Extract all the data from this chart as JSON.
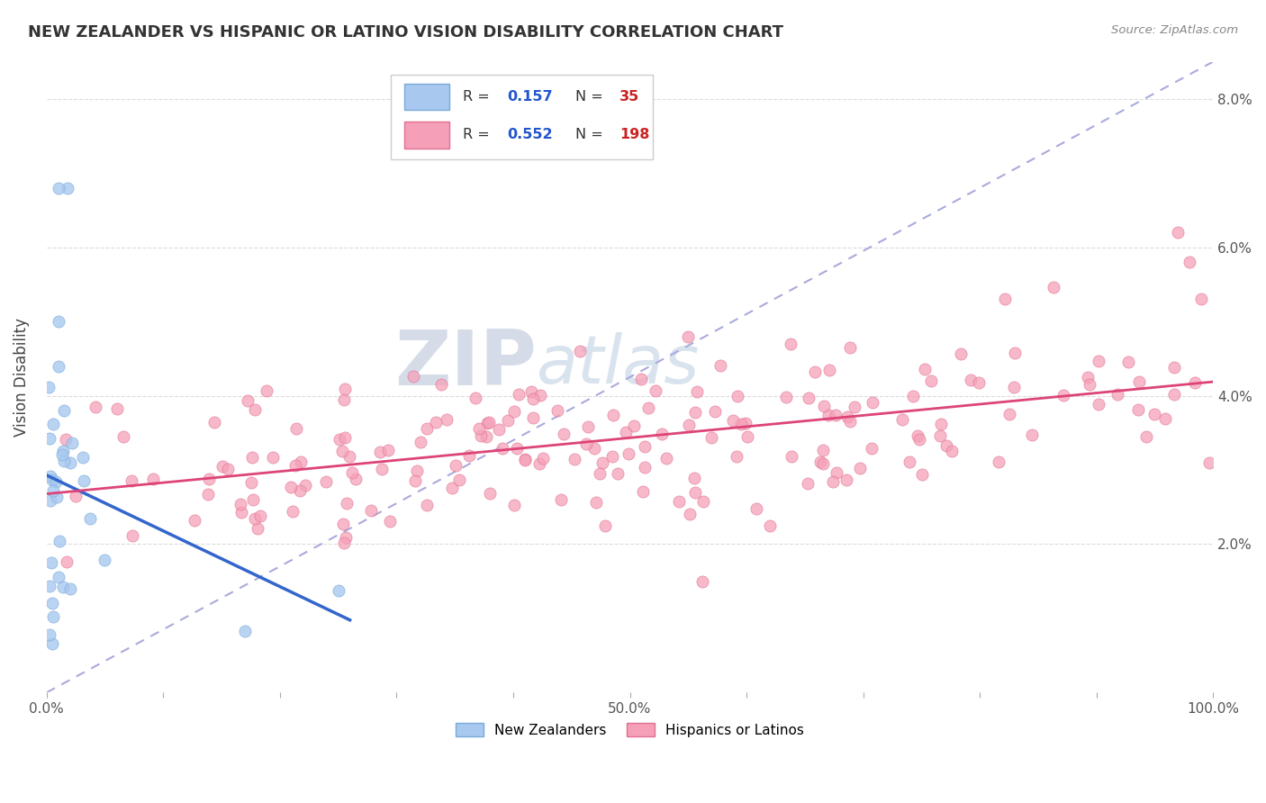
{
  "title": "NEW ZEALANDER VS HISPANIC OR LATINO VISION DISABILITY CORRELATION CHART",
  "source": "Source: ZipAtlas.com",
  "ylabel": "Vision Disability",
  "xlim": [
    0,
    1.0
  ],
  "ylim": [
    0,
    0.085
  ],
  "xtick_pos": [
    0.0,
    0.1,
    0.2,
    0.3,
    0.4,
    0.5,
    0.6,
    0.7,
    0.8,
    0.9,
    1.0
  ],
  "xtick_labels": [
    "0.0%",
    "",
    "",
    "",
    "",
    "50.0%",
    "",
    "",
    "",
    "",
    "100.0%"
  ],
  "ytick_pos": [
    0.0,
    0.02,
    0.04,
    0.06,
    0.08
  ],
  "ytick_labels": [
    "",
    "2.0%",
    "4.0%",
    "6.0%",
    "8.0%"
  ],
  "r_nz": 0.157,
  "n_nz": 35,
  "r_hl": 0.552,
  "n_hl": 198,
  "nz_color": "#a8c8f0",
  "nz_edge_color": "#7aaad8",
  "hl_color": "#f5a0b8",
  "hl_edge_color": "#e07090",
  "nz_line_color": "#3366cc",
  "hl_line_color": "#dd4477",
  "diag_line_color": "#aaaadd",
  "watermark_zip_color": "#d0d8e8",
  "watermark_atlas_color": "#b8cce4",
  "background_color": "#ffffff",
  "grid_color": "#cccccc",
  "title_color": "#333333",
  "source_color": "#888888",
  "axis_color": "#555555"
}
